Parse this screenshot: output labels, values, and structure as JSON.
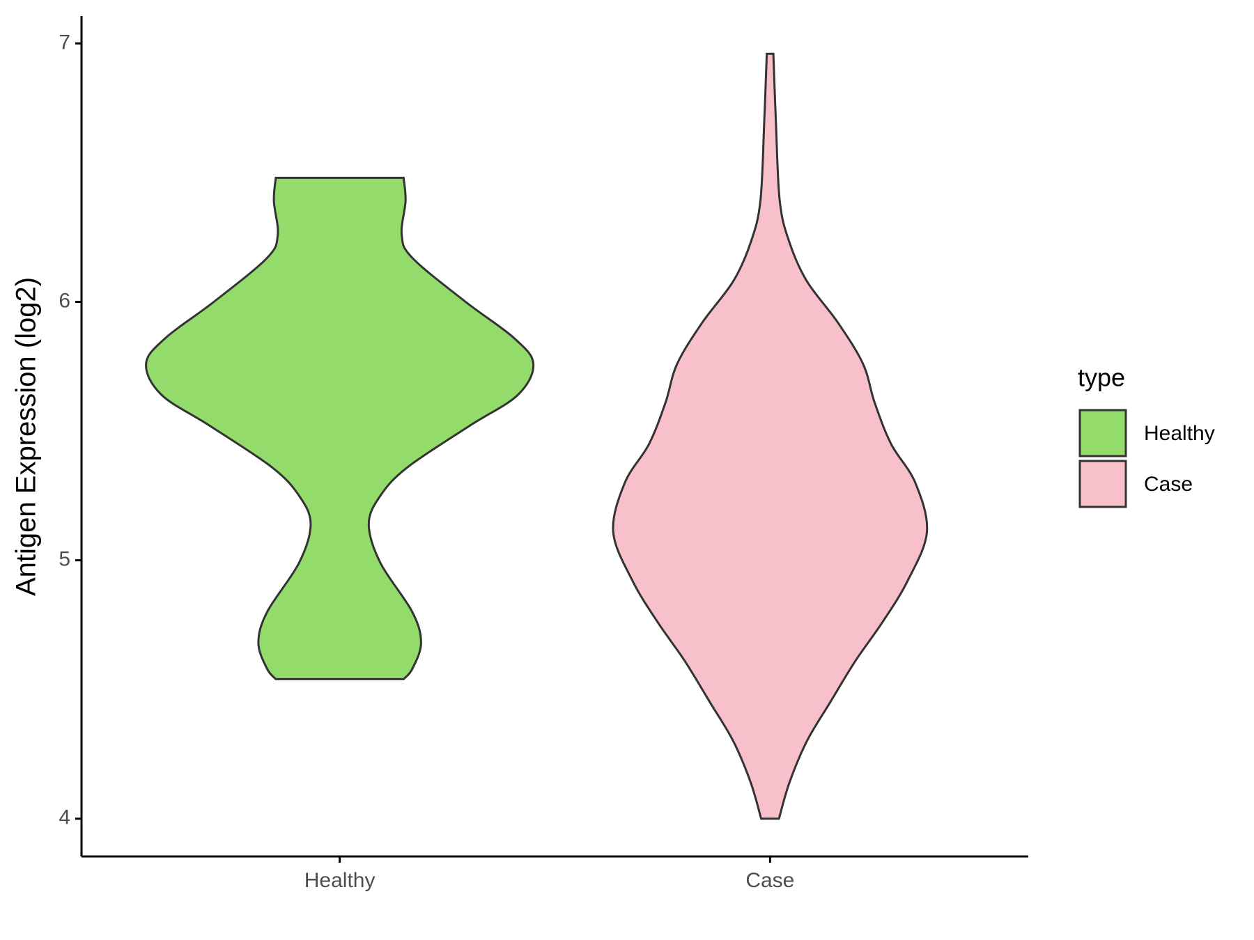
{
  "chart_data": {
    "type": "violin",
    "y_label": "Antigen Expression (log2)",
    "categories": [
      "Healthy",
      "Case"
    ],
    "legend_title": "type",
    "legend_position": "right",
    "ylim": [
      3.854,
      7.106
    ],
    "yticks": [
      4,
      5,
      6,
      7
    ],
    "grid": false,
    "series": [
      {
        "name": "Healthy",
        "color": "#93dc6b",
        "y": [
          6.48,
          6.39,
          6.26,
          6.17,
          6.0,
          5.86,
          5.76,
          5.64,
          5.52,
          5.36,
          5.25,
          5.14,
          4.99,
          4.8,
          4.68,
          4.58,
          4.54
        ],
        "density": [
          0.33,
          0.34,
          0.32,
          0.375,
          0.65,
          0.9,
          1,
          0.92,
          0.67,
          0.35,
          0.21,
          0.15,
          0.21,
          0.375,
          0.42,
          0.375,
          0.33
        ]
      },
      {
        "name": "Case",
        "color": "#f8c0cb",
        "y": [
          6.96,
          6.7,
          6.39,
          6.23,
          6.08,
          5.92,
          5.76,
          5.61,
          5.45,
          5.3,
          5.11,
          4.92,
          4.76,
          4.61,
          4.45,
          4.3,
          4.14,
          4.0
        ],
        "density": [
          0.017,
          0.03,
          0.05,
          0.1,
          0.19,
          0.35,
          0.48,
          0.54,
          0.625,
          0.75,
          0.81,
          0.71,
          0.58,
          0.44,
          0.31,
          0.19,
          0.1,
          0.046
        ]
      }
    ]
  }
}
